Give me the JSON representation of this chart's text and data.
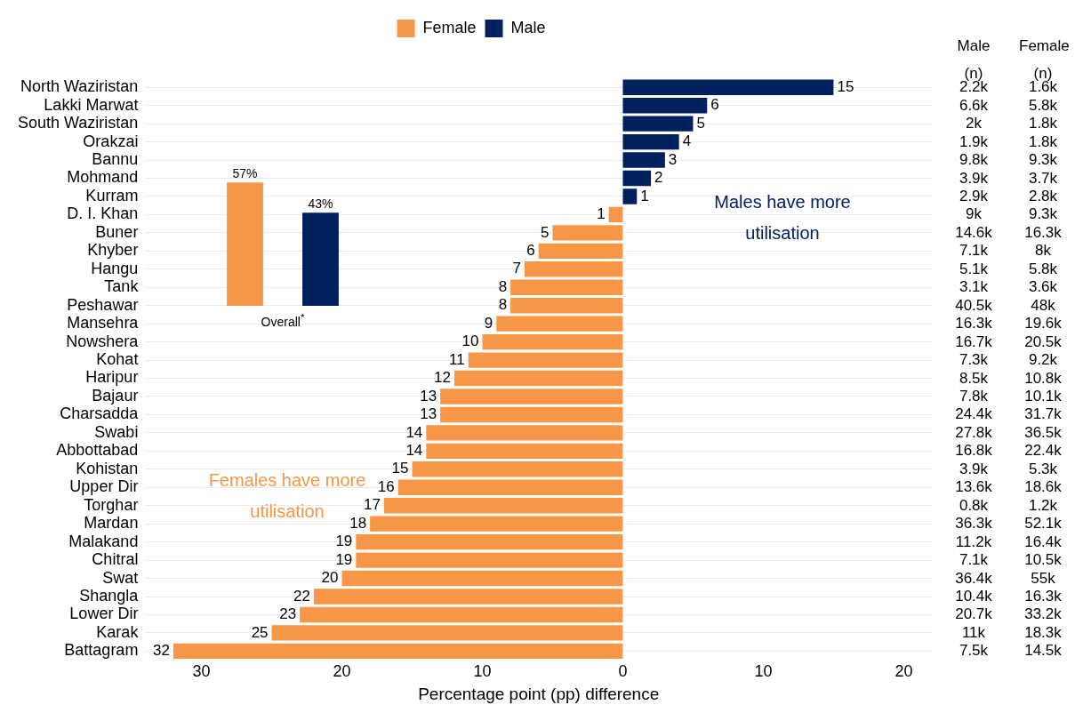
{
  "chart_data": [
    {
      "type": "bar",
      "orientation": "horizontal",
      "xlabel": "Percentage point (pp) difference",
      "categories": [
        "North Waziristan",
        "Lakki Marwat",
        "South Waziristan",
        "Orakzai",
        "Bannu",
        "Mohmand",
        "Kurram",
        "D. I. Khan",
        "Buner",
        "Khyber",
        "Hangu",
        "Tank",
        "Peshawar",
        "Mansehra",
        "Nowshera",
        "Kohat",
        "Haripur",
        "Bajaur",
        "Charsadda",
        "Swabi",
        "Abbottabad",
        "Kohistan",
        "Upper Dir",
        "Torghar",
        "Mardan",
        "Malakand",
        "Chitral",
        "Swat",
        "Shangla",
        "Lower Dir",
        "Karak",
        "Battagram"
      ],
      "series": [
        {
          "name": "Female",
          "color": "#f79646",
          "values": [
            null,
            null,
            null,
            null,
            null,
            null,
            null,
            1,
            5,
            6,
            7,
            8,
            8,
            9,
            10,
            11,
            12,
            13,
            13,
            14,
            14,
            15,
            16,
            17,
            18,
            19,
            19,
            20,
            22,
            23,
            25,
            32
          ],
          "base": [
            null,
            null,
            null,
            null,
            null,
            null,
            null,
            -1,
            -5,
            -6,
            -7,
            -8,
            -8,
            -9,
            -10,
            -11,
            -12,
            -13,
            -13,
            -14,
            -14,
            -15,
            -16,
            -17,
            -18,
            -19,
            -19,
            -20,
            -22,
            -23,
            -25,
            -32
          ],
          "value_labels": [
            null,
            null,
            null,
            null,
            null,
            null,
            null,
            "1",
            "5",
            "6",
            "7",
            "8",
            "8",
            "9",
            "10",
            "11",
            "12",
            "13",
            "13",
            "14",
            "14",
            "15",
            "16",
            "17",
            "18",
            "19",
            "19",
            "20",
            "22",
            "23",
            "25",
            "32"
          ]
        },
        {
          "name": "Male",
          "color": "#002060",
          "values": [
            15,
            6,
            5,
            4,
            3,
            2,
            1,
            null,
            null,
            null,
            null,
            null,
            null,
            null,
            null,
            null,
            null,
            null,
            null,
            null,
            null,
            null,
            null,
            null,
            null,
            null,
            null,
            null,
            null,
            null,
            null,
            null
          ],
          "value_labels": [
            "15",
            "6",
            "5",
            "4",
            "3",
            "2",
            "1",
            null,
            null,
            null,
            null,
            null,
            null,
            null,
            null,
            null,
            null,
            null,
            null,
            null,
            null,
            null,
            null,
            null,
            null,
            null,
            null,
            null,
            null,
            null,
            null,
            null
          ]
        }
      ],
      "xlim": [
        -34,
        22
      ],
      "xticks": [
        {
          "value": -30,
          "label": "30"
        },
        {
          "value": -20,
          "label": "20"
        },
        {
          "value": -10,
          "label": "10"
        },
        0,
        10,
        20
      ],
      "grid": "y",
      "legend": "top",
      "annotations": [
        "Males have more utilisation",
        "Females have more utilisation"
      ]
    },
    {
      "type": "bar",
      "categories": [
        null,
        null
      ],
      "values": [
        57,
        43
      ],
      "colors": [
        "#f79646",
        "#002060"
      ],
      "value_labels": [
        "57%",
        "43%"
      ],
      "annotations": [
        "Overall$^{*}$"
      ]
    },
    {
      "type": "other",
      "categories": [
        "Male (n)",
        "Female (n)"
      ],
      "annotations": [
        "2.2k",
        "1.6k",
        "6.6k",
        "5.8k",
        "2k",
        "1.8k",
        "1.9k",
        "1.8k",
        "9.8k",
        "9.3k",
        "3.9k",
        "3.7k",
        "2.9k",
        "2.8k",
        "9k",
        "9.3k",
        "14.6k",
        "16.3k",
        "7.1k",
        "8k",
        "5.1k",
        "5.8k",
        "3.1k",
        "3.6k",
        "40.5k",
        "48k",
        "16.3k",
        "19.6k",
        "16.7k",
        "20.5k",
        "7.3k",
        "9.2k",
        "8.5k",
        "10.8k",
        "7.8k",
        "10.1k",
        "24.4k",
        "31.7k",
        "27.8k",
        "36.5k",
        "16.8k",
        "22.4k",
        "3.9k",
        "5.3k",
        "13.6k",
        "18.6k",
        "0.8k",
        "1.2k",
        "36.3k",
        "52.1k",
        "11.2k",
        "16.4k",
        "7.1k",
        "10.5k",
        "36.4k",
        "55k",
        "10.4k",
        "16.3k",
        "20.7k",
        "33.2k",
        "11k",
        "18.3k",
        "7.5k",
        "14.5k"
      ]
    }
  ]
}
